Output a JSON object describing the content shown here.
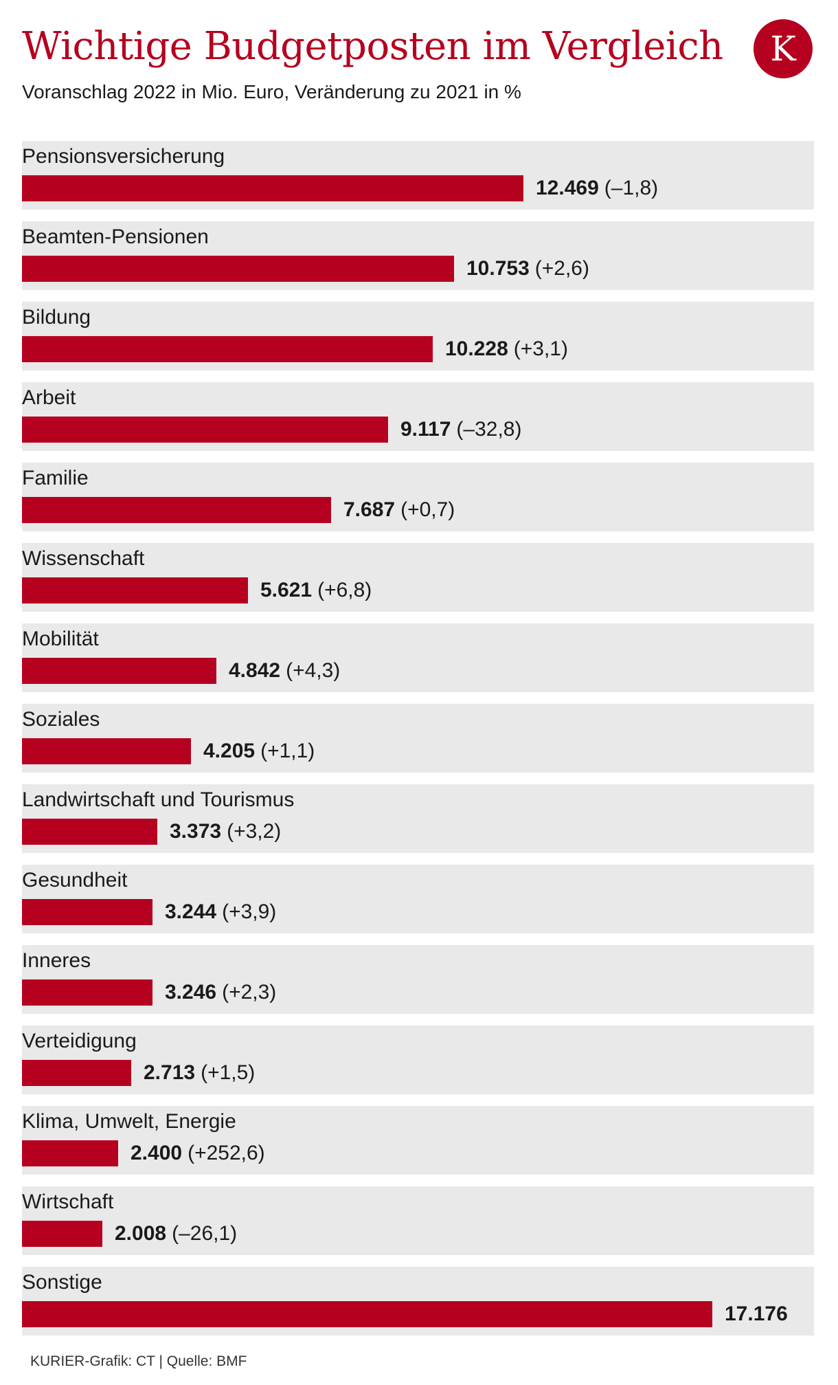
{
  "header": {
    "title": "Wichtige Budgetposten im Vergleich",
    "subtitle": "Voranschlag 2022 in Mio. Euro, Veränderung zu 2021 in %",
    "logo_letter": "K"
  },
  "footer": {
    "credit": "KURIER-Grafik: CT | Quelle: BMF"
  },
  "colors": {
    "bar": "#b5001f",
    "row_background": "#e9e9ea",
    "title": "#b5001f"
  },
  "chart_data": {
    "type": "bar",
    "orientation": "horizontal",
    "title": "Wichtige Budgetposten im Vergleich",
    "subtitle": "Voranschlag 2022 in Mio. Euro, Veränderung zu 2021 in %",
    "xlim": [
      0,
      17176
    ],
    "grid": false,
    "legend": "none",
    "categories": [
      "Pensionsversicherung",
      "Beamten-Pensionen",
      "Bildung",
      "Arbeit",
      "Familie",
      "Wissenschaft",
      "Mobilität",
      "Soziales",
      "Landwirtschaft und Tourismus",
      "Gesundheit",
      "Inneres",
      "Verteidigung",
      "Klima, Umwelt, Energie",
      "Wirtschaft",
      "Sonstige"
    ],
    "values": [
      12469,
      10753,
      10228,
      9117,
      7687,
      5621,
      4842,
      4205,
      3373,
      3244,
      3246,
      2713,
      2400,
      2008,
      17176
    ],
    "value_labels": [
      "12.469",
      "10.753",
      "10.228",
      "9.117",
      "7.687",
      "5.621",
      "4.842",
      "4.205",
      "3.373",
      "3.244",
      "3.246",
      "2.713",
      "2.400",
      "2.008",
      "17.176"
    ],
    "change_labels": [
      "(–1,8)",
      "(+2,6)",
      "(+3,1)",
      "(–32,8)",
      "(+0,7)",
      "(+6,8)",
      "(+4,3)",
      "(+1,1)",
      "(+3,2)",
      "(+3,9)",
      "(+2,3)",
      "(+1,5)",
      "(+252,6)",
      "(–26,1)",
      ""
    ]
  }
}
